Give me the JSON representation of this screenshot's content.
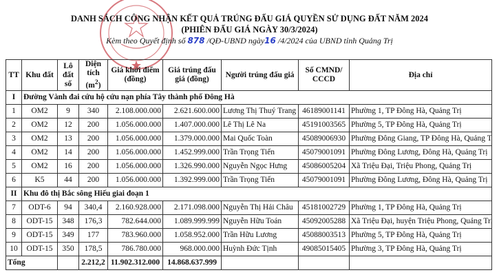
{
  "title": "DANH SÁCH CÔNG NHẬN KẾT QUẢ TRÚNG  ĐẤU GIÁ QUYỀN SỬ DỤNG ĐẤT NĂM 2024",
  "subtitle": "(PHIÊN ĐẤU GIÁ NGÀY 30/3/2024)",
  "decision": {
    "prefix": "Kèm theo Quyết định số ",
    "number": "878",
    "mid": " /QĐ-UBND ngày",
    "day": "16",
    "suffix": " /4/2024 của UBND tỉnh Quảng Trị"
  },
  "stamp_color": "#c8424a",
  "headers": [
    "TT",
    "Khu đất",
    "Lô đất số",
    "Diện tích (m²)",
    "Giá khởi điểm (đồng)",
    "Giá trúng đấu giá (đồng)",
    "Người trúng đấu giá",
    "Số CMND/ CCCD",
    "Địa chỉ"
  ],
  "sections": [
    {
      "num": "I",
      "name": "Đường Vành đai cứu hộ cứu nạn phía Tây thành phố Đông Hà",
      "rows": [
        [
          "1",
          "OM2",
          "9",
          "340",
          "2.108.000.000",
          "2.621.600.000",
          "Lương Thị Thuý Trang",
          "46189001141",
          "Phường 1, TP Đông Hà, Quảng Trị"
        ],
        [
          "2",
          "OM2",
          "12",
          "200",
          "1.056.000.000",
          "1.407.000.000",
          "Lê Thị Lê Na",
          "45191003565",
          "Phường 5, TP Đông Hà, Quảng Trị"
        ],
        [
          "3",
          "OM2",
          "13",
          "200",
          "1.056.000.000",
          "1.379.000.000",
          "Mai Quốc Toàn",
          "45089006930",
          "Phường Đông Giang, TP Đông Hà, Quảng Trị"
        ],
        [
          "4",
          "OM2",
          "14",
          "200",
          "1.056.000.000",
          "1.452.999.000",
          "Trần Trọng Tiến",
          "45079001091",
          "Phường Đông Lương, Đông Hà, Quảng Trị"
        ],
        [
          "5",
          "OM2",
          "16",
          "200",
          "1.056.000.000",
          "1.326.990.000",
          "Nguyễn Ngọc Hưng",
          "45086005204",
          "Xã Triệu Đại, Triệu Phong, Quảng Trị"
        ],
        [
          "6",
          "K5",
          "44",
          "200",
          "1.056.000.000",
          "1.392.999.000",
          "Trần Trọng Tiến",
          "45079001091",
          "Phường Đông Lương, Đông Hà, Quảng Trị"
        ]
      ]
    },
    {
      "num": "II",
      "name": "Khu đô thị Bắc sông Hiếu giai đoạn 1",
      "rows": [
        [
          "7",
          "ODT-6",
          "94",
          "340,4",
          "2.160.928.000",
          "2.171.098.000",
          "Nguyễn Thị Hải Châu",
          "45181002729",
          "Phường 1, TP Đông Hà, Quảng Trị"
        ],
        [
          "8",
          "ODT-15",
          "348",
          "176,3",
          "782.644.000",
          "1.089.999.999",
          "Nguyễn Hữu Toán",
          "45092005288",
          "Xã Triệu Đại, huyện Triệu Phong, Quảng Trị"
        ],
        [
          "9",
          "ODT-15",
          "349",
          "177",
          "783.960.000",
          "1.058.952.000",
          "Trần Hữu Lương",
          "45088003513",
          "Phường 5, TP Đông Hà, Quảng Trị"
        ],
        [
          "10",
          "ODT-15",
          "350",
          "178,5",
          "786.780.000",
          "968.000.000",
          "Huỳnh Đức Tịnh",
          "49085015405",
          "Phường 3, TP Đông Hà, Quảng Trị"
        ]
      ]
    }
  ],
  "total": {
    "label": "Tổng",
    "area": "2.212,2",
    "start_price": "11.902.312.000",
    "win_price": "14.868.637.999"
  }
}
